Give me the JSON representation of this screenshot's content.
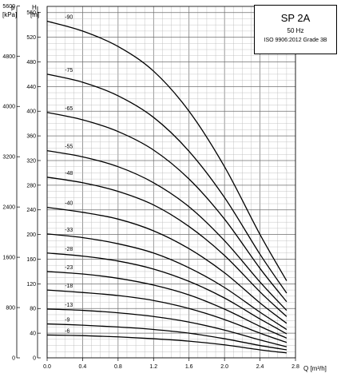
{
  "chart_data": {
    "type": "line",
    "title": "SP 2A",
    "subtitle": "50 Hz",
    "standard": "ISO 9906:2012 Grade 3B",
    "xlabel": "Q [m³/h]",
    "ylabel_left_primary": "p",
    "ylabel_left_primary_unit": "[kPa]",
    "ylabel_left_secondary": "H",
    "ylabel_left_secondary_unit": "[m]",
    "xlim": [
      0,
      2.8
    ],
    "ylim": [
      0,
      570
    ],
    "x_ticks": [
      "0.0",
      "0.4",
      "0.8",
      "1.2",
      "1.6",
      "2.0",
      "2.4",
      "2.8"
    ],
    "h_ticks": [
      "0",
      "40",
      "80",
      "120",
      "160",
      "200",
      "240",
      "280",
      "320",
      "360",
      "400",
      "440",
      "480",
      "520",
      "560"
    ],
    "p_ticks": [
      "0",
      "800",
      "1600",
      "2400",
      "3200",
      "4000",
      "4800",
      "5600"
    ],
    "grid": true,
    "legend_position": "top-right",
    "series": [
      {
        "name": "-90",
        "x": [
          0,
          0.4,
          0.8,
          1.2,
          1.6,
          2.0,
          2.4,
          2.7
        ],
        "y": [
          546,
          530,
          505,
          465,
          400,
          310,
          200,
          125
        ]
      },
      {
        "name": "-75",
        "x": [
          0,
          0.4,
          0.8,
          1.2,
          1.6,
          2.0,
          2.4,
          2.7
        ],
        "y": [
          460,
          447,
          425,
          390,
          335,
          260,
          168,
          105
        ]
      },
      {
        "name": "-65",
        "x": [
          0,
          0.4,
          0.8,
          1.2,
          1.6,
          2.0,
          2.4,
          2.7
        ],
        "y": [
          398,
          386,
          367,
          337,
          290,
          225,
          145,
          91
        ]
      },
      {
        "name": "-55",
        "x": [
          0,
          0.4,
          0.8,
          1.2,
          1.6,
          2.0,
          2.4,
          2.7
        ],
        "y": [
          336,
          326,
          310,
          284,
          245,
          190,
          123,
          77
        ]
      },
      {
        "name": "-48",
        "x": [
          0,
          0.4,
          0.8,
          1.2,
          1.6,
          2.0,
          2.4,
          2.7
        ],
        "y": [
          293,
          284,
          270,
          248,
          213,
          166,
          107,
          67
        ]
      },
      {
        "name": "-40",
        "x": [
          0,
          0.4,
          0.8,
          1.2,
          1.6,
          2.0,
          2.4,
          2.7
        ],
        "y": [
          244,
          236,
          225,
          206,
          177,
          138,
          89,
          56
        ]
      },
      {
        "name": "-33",
        "x": [
          0,
          0.4,
          0.8,
          1.2,
          1.6,
          2.0,
          2.4,
          2.7
        ],
        "y": [
          201,
          195,
          185,
          170,
          146,
          114,
          74,
          46
        ]
      },
      {
        "name": "-28",
        "x": [
          0,
          0.4,
          0.8,
          1.2,
          1.6,
          2.0,
          2.4,
          2.7
        ],
        "y": [
          170,
          165,
          157,
          144,
          124,
          97,
          63,
          39
        ]
      },
      {
        "name": "-23",
        "x": [
          0,
          0.4,
          0.8,
          1.2,
          1.6,
          2.0,
          2.4,
          2.7
        ],
        "y": [
          140,
          136,
          129,
          118,
          102,
          79,
          51,
          32
        ]
      },
      {
        "name": "-18",
        "x": [
          0,
          0.4,
          0.8,
          1.2,
          1.6,
          2.0,
          2.4,
          2.7
        ],
        "y": [
          110,
          106,
          101,
          93,
          80,
          62,
          40,
          25
        ]
      },
      {
        "name": "-13",
        "x": [
          0,
          0.4,
          0.8,
          1.2,
          1.6,
          2.0,
          2.4,
          2.7
        ],
        "y": [
          79,
          77,
          73,
          67,
          58,
          45,
          29,
          18
        ]
      },
      {
        "name": "-9",
        "x": [
          0,
          0.4,
          0.8,
          1.2,
          1.6,
          2.0,
          2.4,
          2.7
        ],
        "y": [
          55,
          53,
          50,
          46,
          40,
          31,
          20,
          13
        ]
      },
      {
        "name": "-6",
        "x": [
          0,
          0.4,
          0.8,
          1.2,
          1.6,
          2.0,
          2.4,
          2.7
        ],
        "y": [
          37,
          36,
          34,
          31,
          27,
          21,
          13,
          8
        ]
      }
    ]
  }
}
